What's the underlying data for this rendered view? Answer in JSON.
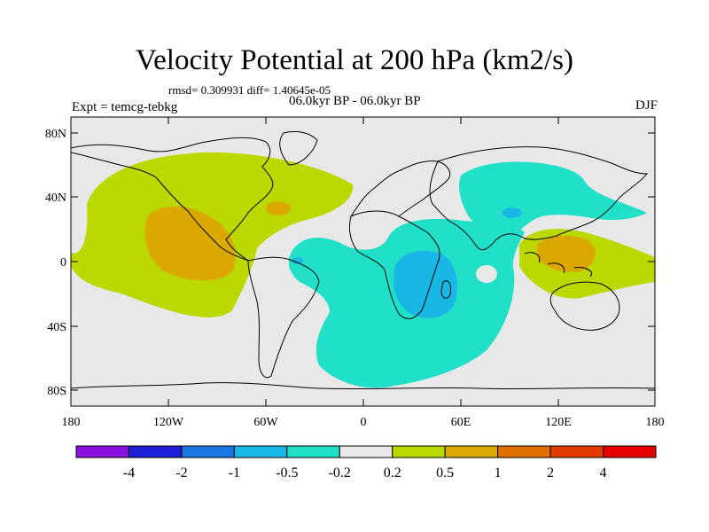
{
  "header": {
    "title": "Velocity Potential at 200 hPa (km2/s)",
    "stats": "rmsd= 0.309931 diff= 1.40645e-05",
    "period": "06.0kyr BP - 06.0kyr BP",
    "experiment": "Expt = temcg-tebkg",
    "season": "DJF"
  },
  "map": {
    "lat_ticks": [
      "80N",
      "40N",
      "0",
      "40S",
      "80S"
    ],
    "lon_ticks": [
      "180",
      "120W",
      "60W",
      "0",
      "60E",
      "120E",
      "180"
    ],
    "lon_range": [
      -180,
      180
    ],
    "lat_range": [
      -90,
      90
    ]
  },
  "colorbar": {
    "labels": [
      "-4",
      "-2",
      "-1",
      "-0.5",
      "-0.2",
      "0.2",
      "0.5",
      "1",
      "2",
      "4"
    ],
    "colors": [
      "#8a10e0",
      "#2020d8",
      "#1a78e6",
      "#18b8e8",
      "#20e0c8",
      "#e8e8e8",
      "#b8d800",
      "#dcaa00",
      "#e06f00",
      "#e23c00",
      "#e80000"
    ]
  },
  "field_colors": {
    "background": "#e8e8e8",
    "positive_light": "#bbd900",
    "positive_mid": "#dba800",
    "negative_light": "#21e0c8",
    "negative_mid": "#19b7e6"
  }
}
